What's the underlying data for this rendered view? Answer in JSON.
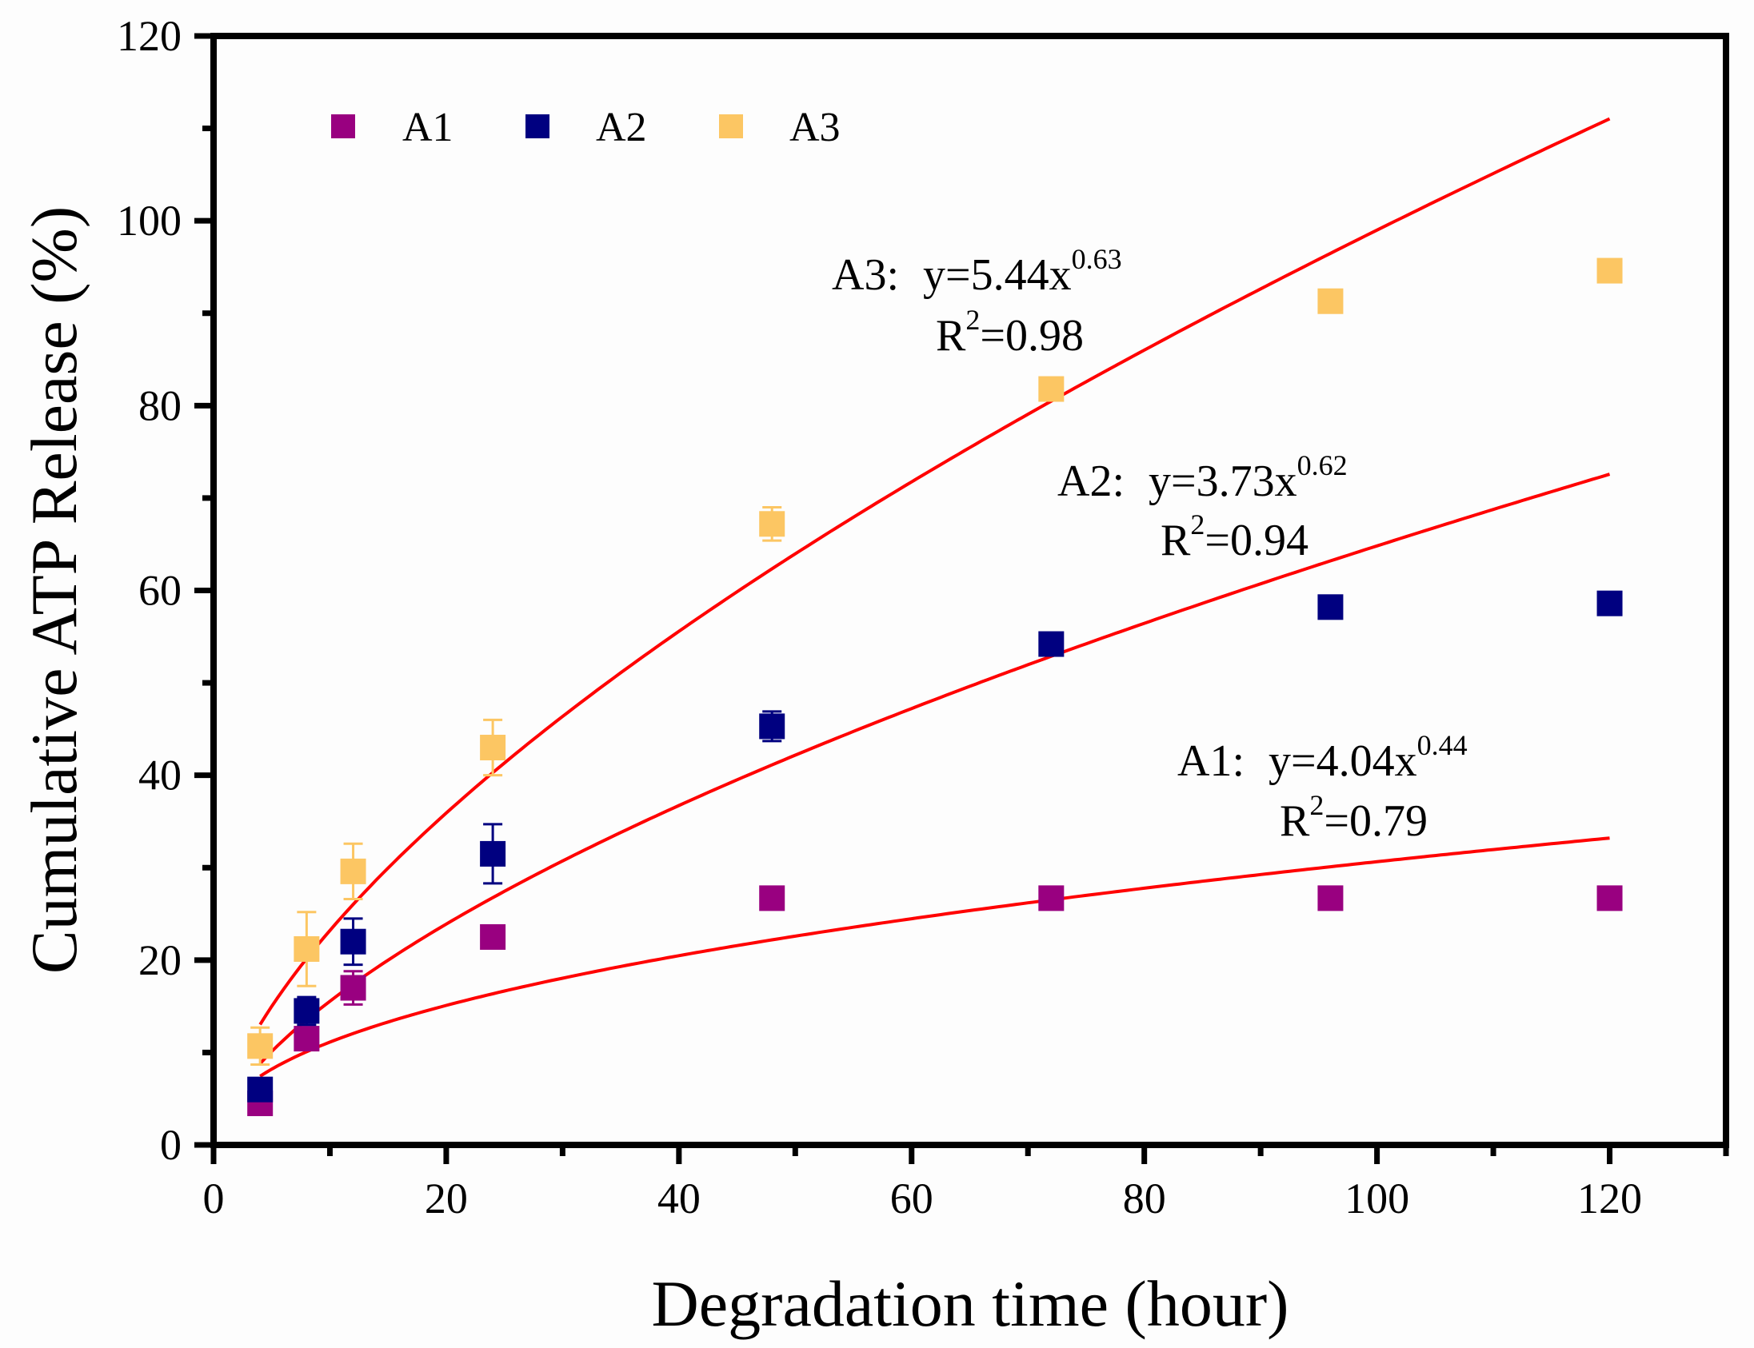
{
  "chart_data": {
    "type": "scatter",
    "title": "",
    "xlabel": "Degradation time (hour)",
    "ylabel": "Cumulative ATP Release (%)",
    "xlim": [
      0,
      130
    ],
    "ylim": [
      0,
      120
    ],
    "xticks": [
      0,
      20,
      40,
      60,
      80,
      100,
      120
    ],
    "yticks": [
      0,
      20,
      40,
      60,
      80,
      100,
      120
    ],
    "x_tick_labels": [
      "0",
      "20",
      "40",
      "60",
      "80",
      "100",
      "120"
    ],
    "y_tick_labels": [
      "0",
      "20",
      "40",
      "60",
      "80",
      "100",
      "120"
    ],
    "grid": false,
    "legend_placement": "top-left",
    "x": [
      4,
      8,
      12,
      24,
      48,
      72,
      96,
      120
    ],
    "series": [
      {
        "name": "A1",
        "color": "#990080",
        "values": [
          4.5,
          11.5,
          17,
          22.5,
          26.7,
          26.7,
          26.7,
          26.7
        ],
        "errors": [
          0.8,
          1,
          1.8,
          0.5,
          0.5,
          0.5,
          0.5,
          0.5
        ]
      },
      {
        "name": "A2",
        "color": "#000080",
        "values": [
          6,
          14.5,
          22,
          31.5,
          45.3,
          54.2,
          58.2,
          58.6
        ],
        "errors": [
          1,
          1.5,
          2.5,
          3.2,
          1.6,
          0.8,
          0.8,
          0.8
        ]
      },
      {
        "name": "A3",
        "color": "#FCC663",
        "values": [
          10.7,
          21.2,
          29.6,
          43,
          67.2,
          81.8,
          91.3,
          94.6
        ],
        "errors": [
          2,
          4,
          3,
          3,
          1.8,
          0.8,
          0.8,
          0.8
        ]
      }
    ],
    "fits": [
      {
        "series": "A1",
        "a": 4.04,
        "b": 0.44,
        "x_range": [
          4,
          120
        ],
        "color": "#FF0000",
        "label": "A1:",
        "eq": "y=4.04x",
        "exp": "0.44",
        "r": "R",
        "r_sup": "2",
        "r2": "=0.79"
      },
      {
        "series": "A2",
        "a": 3.73,
        "b": 0.62,
        "x_range": [
          4,
          120
        ],
        "color": "#FF0000",
        "label": "A2:",
        "eq": "y=3.73x",
        "exp": "0.62",
        "r": "R",
        "r_sup": "2",
        "r2": "=0.94"
      },
      {
        "series": "A3",
        "a": 5.44,
        "b": 0.63,
        "x_range": [
          4,
          120
        ],
        "color": "#FF0000",
        "label": "A3:",
        "eq": "y=5.44x",
        "exp": "0.63",
        "r": "R",
        "r_sup": "2",
        "r2": "=0.98"
      }
    ]
  }
}
